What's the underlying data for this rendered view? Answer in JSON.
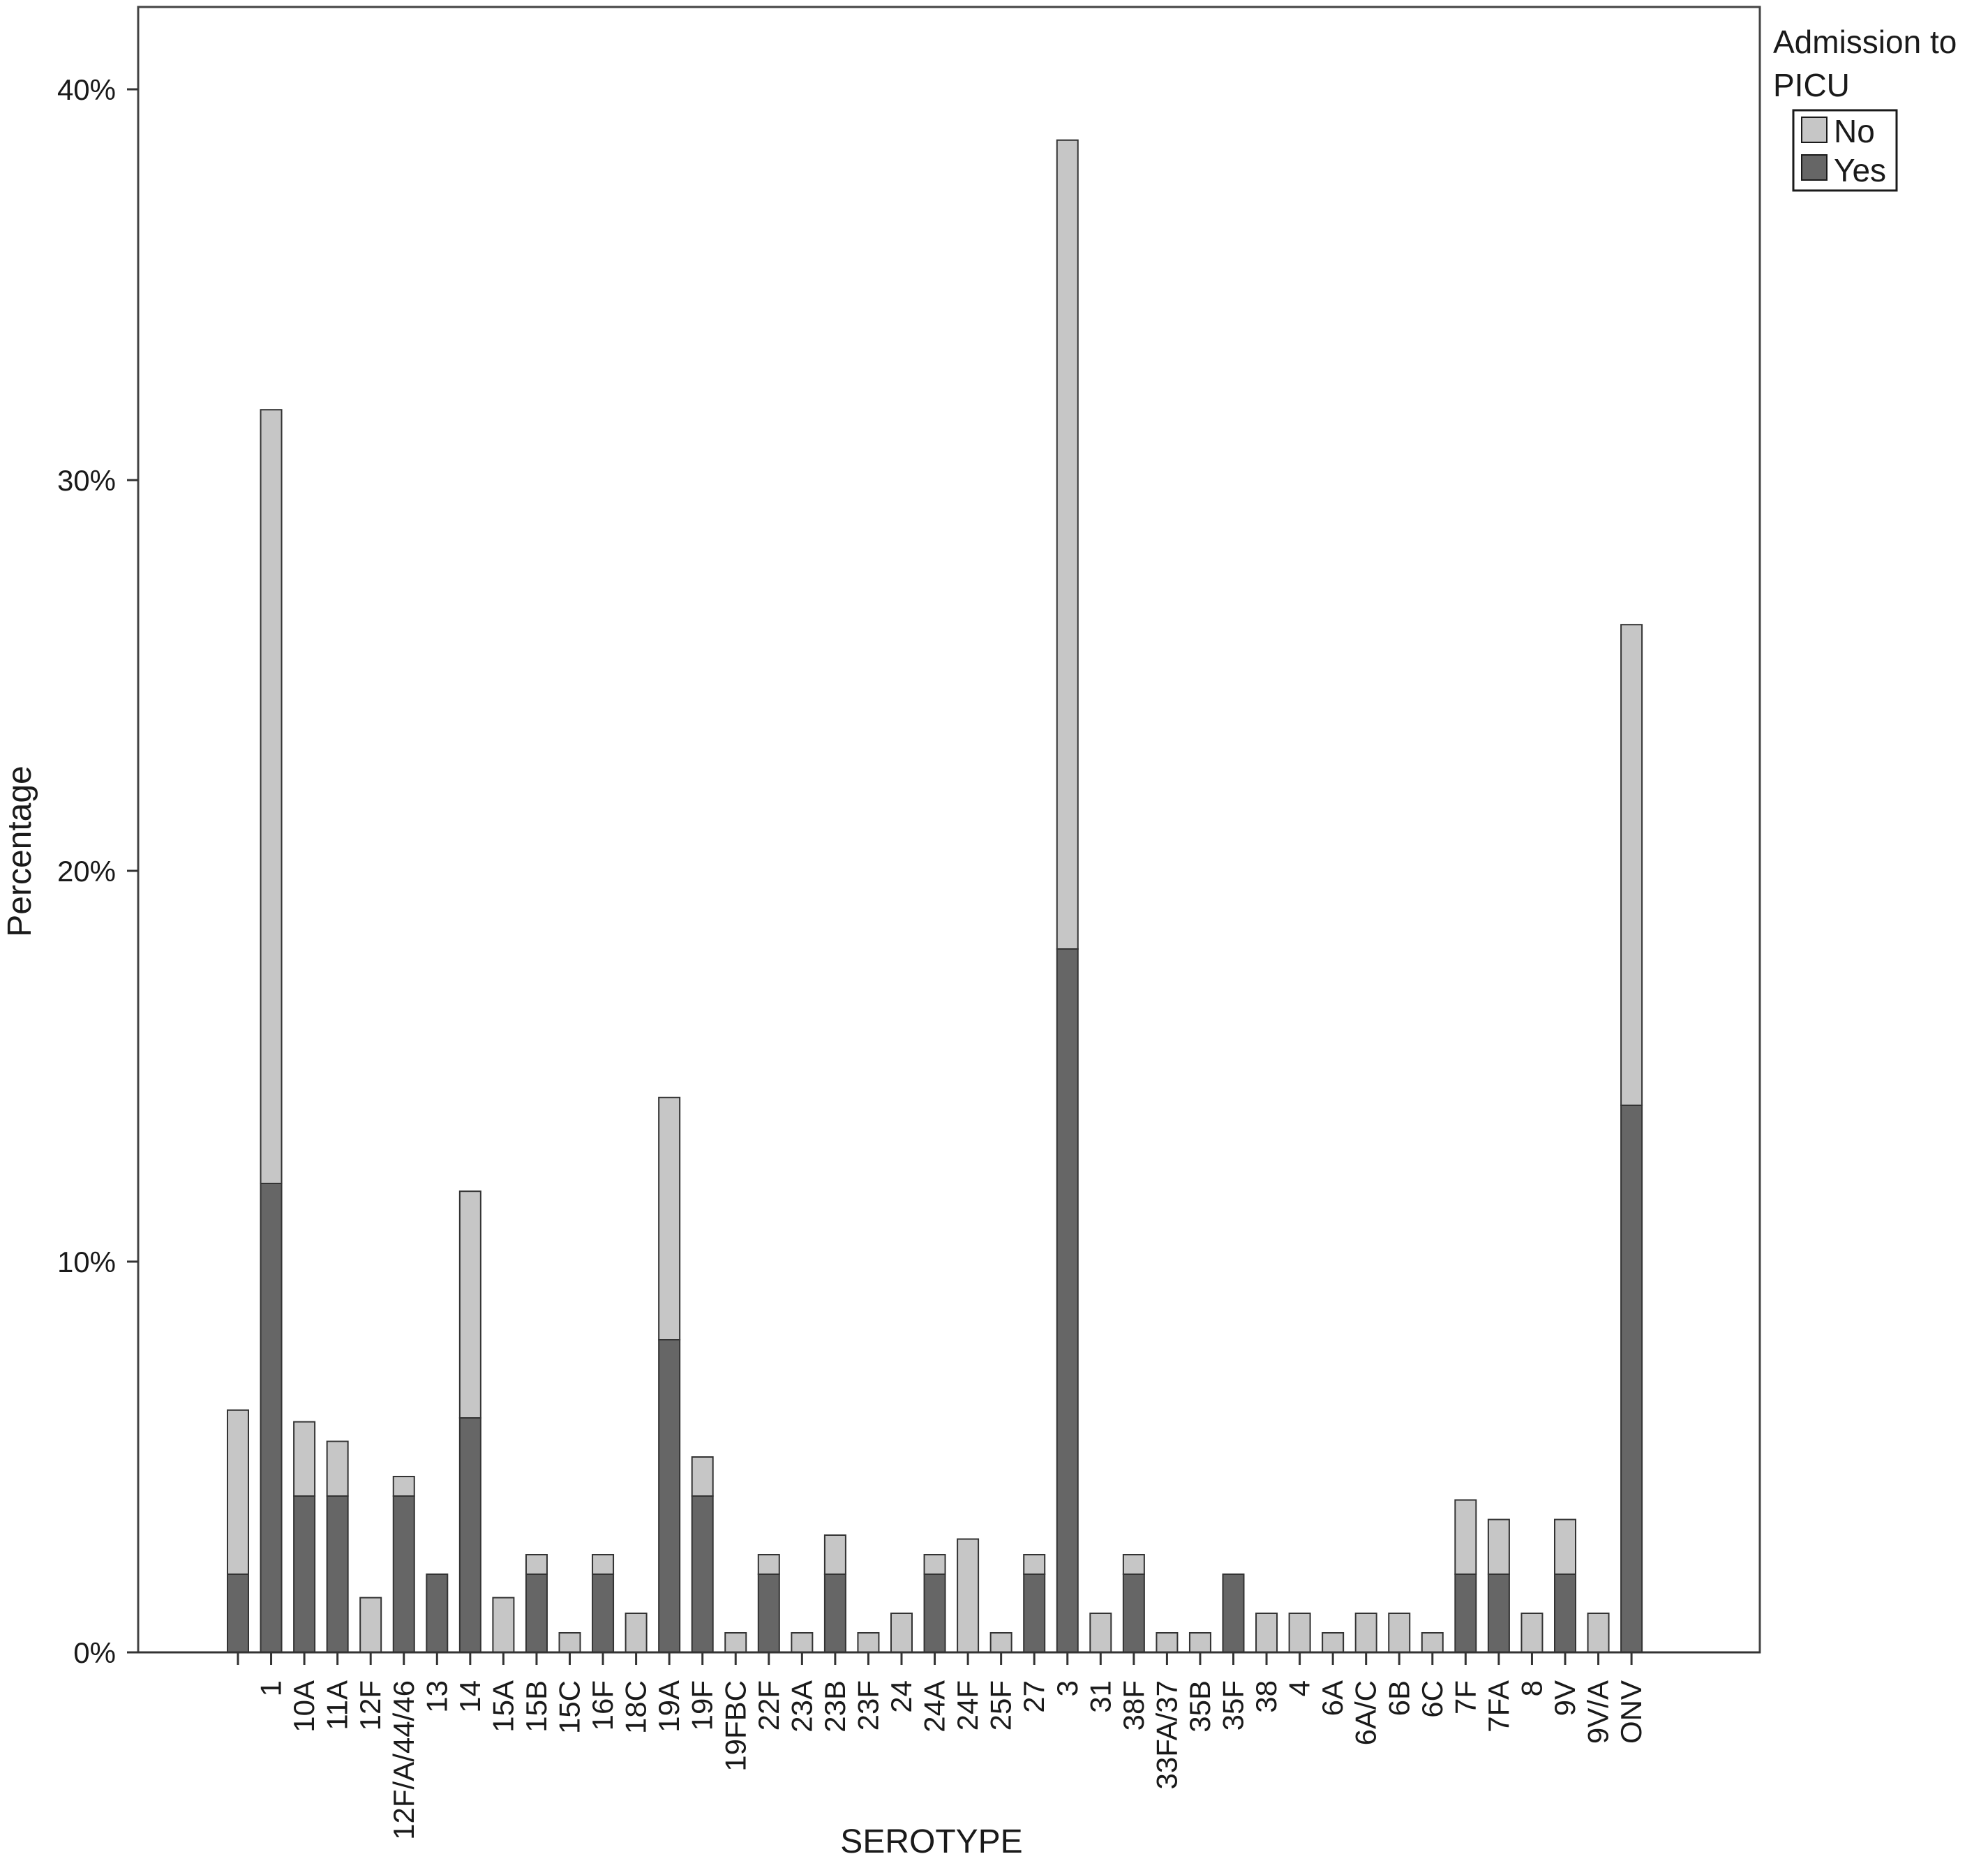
{
  "chart_data": {
    "type": "bar",
    "stacked": true,
    "xlabel": "SEROTYPE",
    "ylabel": "Percentage",
    "ylim": [
      0,
      42
    ],
    "yticks": [
      "0%",
      "10%",
      "20%",
      "30%",
      "40%"
    ],
    "ytick_values": [
      0,
      10,
      20,
      30,
      40
    ],
    "grid": false,
    "legend": {
      "title": "Admission to PICU",
      "placement": "top-right, outside plot"
    },
    "categories": [
      "",
      "1",
      "10A",
      "11A",
      "12F",
      "12F/A/44/46",
      "13",
      "14",
      "15A",
      "15B",
      "15C",
      "16F",
      "18C",
      "19A",
      "19F",
      "19FBC",
      "22F",
      "23A",
      "23B",
      "23F",
      "24",
      "24A",
      "24F",
      "25F",
      "27",
      "3",
      "31",
      "38F",
      "33FA/37",
      "35B",
      "35F",
      "38",
      "4",
      "6A",
      "6A/C",
      "6B",
      "6C",
      "7F",
      "7FA",
      "8",
      "9V",
      "9V/A",
      "ONV"
    ],
    "series": [
      {
        "name": "Yes",
        "color": "#666666",
        "values": [
          2,
          12,
          4,
          4,
          0,
          4,
          2,
          6,
          0,
          2,
          0,
          2,
          0,
          8,
          4,
          0,
          2,
          0,
          2,
          0,
          0,
          2,
          0,
          0,
          2,
          18,
          0,
          2,
          0,
          0,
          2,
          0,
          0,
          0,
          0,
          0,
          0,
          2,
          2,
          0,
          2,
          0,
          14
        ]
      },
      {
        "name": "No",
        "color": "#c6c6c6",
        "values": [
          4.2,
          19.8,
          1.9,
          1.4,
          1.4,
          0.5,
          0,
          5.8,
          1.4,
          0.5,
          0.5,
          0.5,
          1.0,
          6.2,
          1.0,
          0.5,
          0.5,
          0.5,
          1.0,
          0.5,
          1.0,
          0.5,
          2.9,
          0.5,
          0.5,
          20.7,
          1.0,
          0.5,
          0.5,
          0.5,
          0,
          1.0,
          1.0,
          0.5,
          1.0,
          1.0,
          0.5,
          1.9,
          1.4,
          1.0,
          1.4,
          1.0,
          12.3
        ]
      }
    ]
  }
}
